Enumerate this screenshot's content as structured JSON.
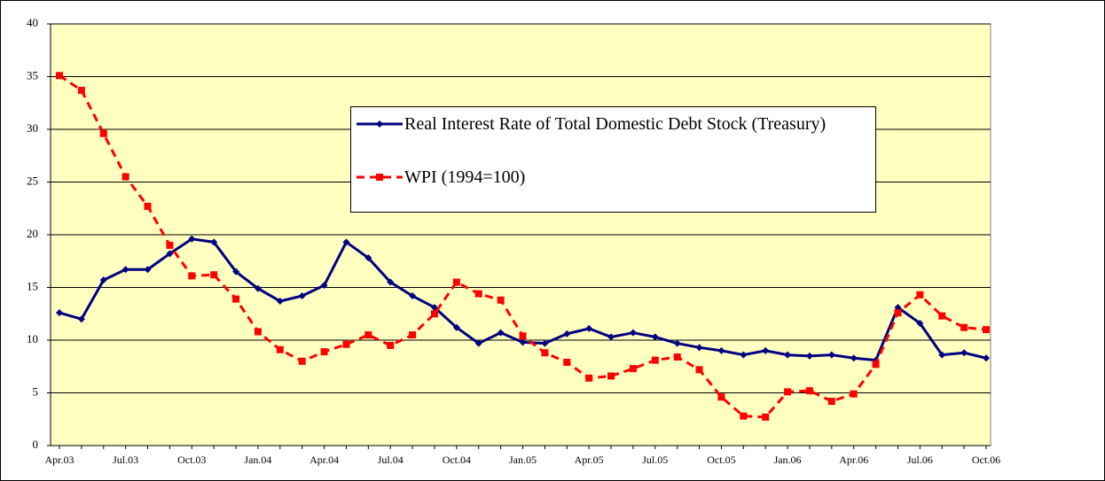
{
  "chart_data": {
    "type": "line",
    "categories": [
      "Apr.03",
      null,
      null,
      "Jul.03",
      null,
      null,
      "Oct.03",
      null,
      null,
      "Jan.04",
      null,
      null,
      "Apr.04",
      null,
      null,
      "Jul.04",
      null,
      null,
      "Oct.04",
      null,
      null,
      "Jan.05",
      null,
      null,
      "Apr.05",
      null,
      null,
      "Jul.05",
      null,
      null,
      "Oct.05",
      null,
      null,
      "Jan.06",
      null,
      null,
      "Apr.06",
      null,
      null,
      "Jul.06",
      null,
      null,
      "Oct.06"
    ],
    "series": [
      {
        "name": "Real Interest Rate of Total Domestic Debt Stock (Treasury)",
        "color": "#000080",
        "dashed": false,
        "marker": "diamond",
        "values": [
          12.6,
          12.0,
          15.7,
          16.7,
          16.7,
          18.2,
          19.6,
          19.3,
          16.5,
          14.9,
          13.7,
          14.2,
          15.2,
          19.3,
          17.8,
          15.5,
          14.2,
          13.1,
          11.2,
          9.7,
          10.7,
          9.8,
          9.7,
          10.6,
          11.1,
          10.3,
          10.7,
          10.3,
          9.7,
          9.3,
          9.0,
          8.6,
          9.0,
          8.6,
          8.5,
          8.6,
          8.3,
          8.1,
          13.1,
          11.6,
          8.6,
          8.8,
          8.3
        ]
      },
      {
        "name": "WPI (1994=100)",
        "color": "#ff0000",
        "dashed": true,
        "marker": "square",
        "values": [
          35.1,
          33.7,
          29.6,
          25.5,
          22.7,
          19.0,
          16.1,
          16.2,
          13.9,
          10.8,
          9.1,
          8.0,
          8.9,
          9.6,
          10.5,
          9.5,
          10.5,
          12.5,
          15.5,
          14.4,
          13.8,
          10.4,
          8.8,
          7.9,
          6.4,
          6.6,
          7.3,
          8.1,
          8.4,
          7.2,
          4.6,
          2.8,
          2.7,
          5.1,
          5.2,
          4.2,
          4.9,
          7.7,
          12.6,
          14.3,
          12.3,
          11.2,
          11.0
        ]
      }
    ],
    "ylim": [
      0,
      40
    ],
    "yticks": [
      0,
      5,
      10,
      15,
      20,
      25,
      30,
      35,
      40
    ],
    "grid": true,
    "background": "#ffffc0"
  }
}
